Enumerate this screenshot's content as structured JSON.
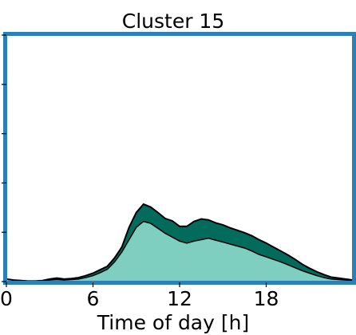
{
  "colors": {
    "frame": "#2a80b9",
    "series_upper": "#036b5c",
    "series_lower": "#7ecfbf",
    "outline": "#000000"
  },
  "chart_data": {
    "type": "area",
    "title": "Cluster 15",
    "xlabel": "Time of day [h]",
    "ylabel": "",
    "xlim": [
      0,
      24
    ],
    "ylim": [
      0,
      5
    ],
    "xticks": [
      0,
      6,
      12,
      18
    ],
    "xtick_labels": [
      "0",
      "6",
      "12",
      "18"
    ],
    "yticks": [
      0,
      1,
      2,
      3,
      4,
      5
    ],
    "stacked": true,
    "x": [
      0,
      0.5,
      1,
      1.5,
      2,
      2.5,
      3,
      3.5,
      4,
      4.5,
      5,
      5.5,
      6,
      6.5,
      7,
      7.5,
      8,
      8.5,
      9,
      9.5,
      10,
      10.5,
      11,
      11.5,
      12,
      12.5,
      13,
      13.5,
      14,
      14.5,
      15,
      15.5,
      16,
      16.5,
      17,
      17.5,
      18,
      18.5,
      19,
      19.5,
      20,
      20.5,
      21,
      21.5,
      22,
      22.5,
      23,
      23.5,
      24
    ],
    "series": [
      {
        "values": [
          0.05,
          0.03,
          0.02,
          0.01,
          0.01,
          0.02,
          0.03,
          0.04,
          0.03,
          0.04,
          0.05,
          0.08,
          0.12,
          0.18,
          0.25,
          0.4,
          0.6,
          0.85,
          1.1,
          1.22,
          1.18,
          1.08,
          0.98,
          0.9,
          0.82,
          0.78,
          0.82,
          0.85,
          0.88,
          0.84,
          0.8,
          0.76,
          0.72,
          0.68,
          0.62,
          0.55,
          0.5,
          0.45,
          0.4,
          0.34,
          0.28,
          0.22,
          0.17,
          0.12,
          0.08,
          0.05,
          0.04,
          0.03,
          0.02
        ]
      },
      {
        "values": [
          0.0,
          0.0,
          0.0,
          0.0,
          0.0,
          0.0,
          0.02,
          0.03,
          0.02,
          0.02,
          0.03,
          0.04,
          0.05,
          0.06,
          0.06,
          0.08,
          0.1,
          0.25,
          0.3,
          0.35,
          0.33,
          0.32,
          0.3,
          0.33,
          0.3,
          0.34,
          0.4,
          0.42,
          0.37,
          0.35,
          0.35,
          0.33,
          0.32,
          0.31,
          0.31,
          0.3,
          0.28,
          0.25,
          0.22,
          0.2,
          0.17,
          0.13,
          0.1,
          0.08,
          0.06,
          0.04,
          0.03,
          0.02,
          0.01
        ]
      }
    ]
  }
}
